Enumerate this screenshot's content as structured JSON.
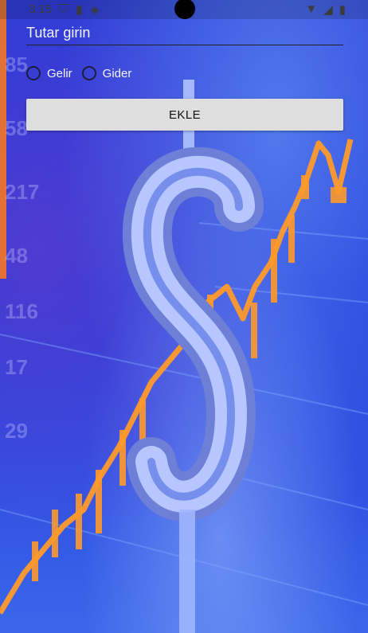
{
  "status_bar": {
    "time": "3:15",
    "icons_left": [
      "shield-icon",
      "sd-card-icon",
      "sim-icon"
    ],
    "icons_right": [
      "wifi-icon",
      "signal-icon",
      "battery-icon"
    ]
  },
  "form": {
    "amount_placeholder": "Tutar girin",
    "amount_value": "",
    "radios": [
      {
        "label": "Gelir",
        "checked": false
      },
      {
        "label": "Gider",
        "checked": false
      }
    ],
    "add_button_label": "EKLE"
  },
  "background": {
    "description_icon": "dollar-chart-background",
    "accent_color": "#ff9a2a",
    "base_color": "#1f3fd6"
  }
}
